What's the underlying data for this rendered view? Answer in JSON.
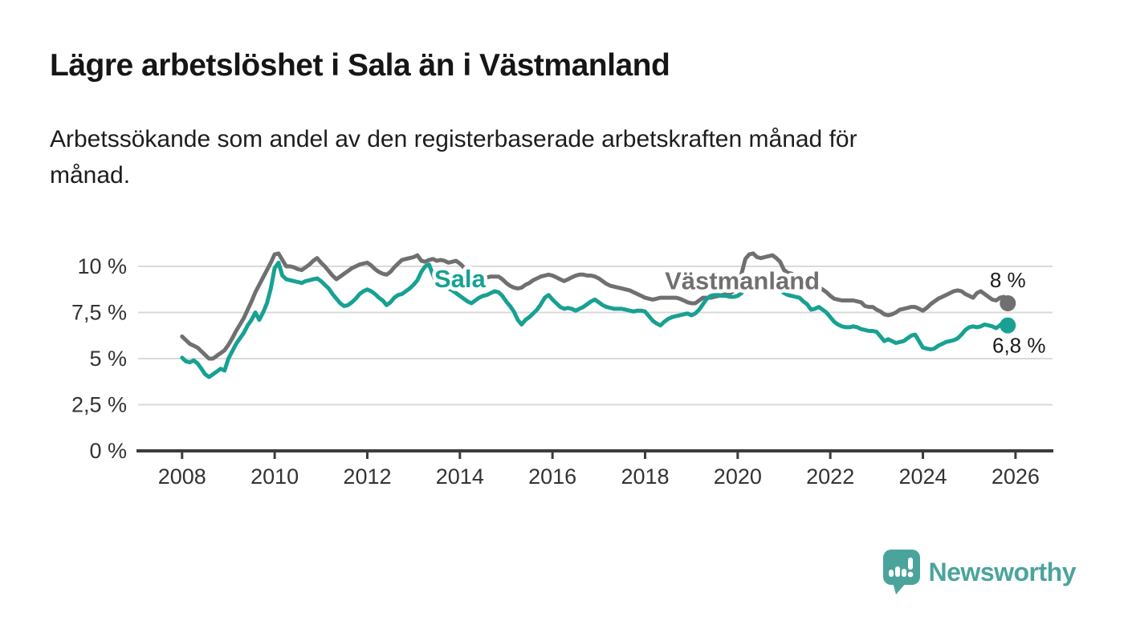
{
  "header": {
    "title": "Lägre arbetslöshet i Sala än i Västmanland",
    "subtitle_lines": [
      "Arbetssökande som andel av den registerbaserade arbetskraften månad för",
      "månad."
    ]
  },
  "footer": {
    "brand": "Newsworthy"
  },
  "colors": {
    "sala": "#18A193",
    "vastmanland": "#707070",
    "grid": "#DADADA",
    "axis": "#3C3C3C",
    "tick_text": "#333333",
    "title_text": "#161616",
    "logo": "#4BA49C"
  },
  "chart_data": {
    "type": "line",
    "title": "Lägre arbetslöshet i Sala än i Västmanland",
    "subtitle": "Arbetssökande som andel av den registerbaserade arbetskraften månad för månad.",
    "unit": "%",
    "x_ticks": [
      2008,
      2010,
      2012,
      2014,
      2016,
      2018,
      2020,
      2022,
      2024,
      2026
    ],
    "y_ticks": [
      {
        "value": 0,
        "label": "0 %"
      },
      {
        "value": 2.5,
        "label": "2,5 %"
      },
      {
        "value": 5,
        "label": "5 %"
      },
      {
        "value": 7.5,
        "label": "7,5 %"
      },
      {
        "value": 10,
        "label": "10 %"
      }
    ],
    "xlim": [
      2007.05,
      2026.8
    ],
    "ylim": [
      0,
      11.6
    ],
    "grid": true,
    "legend_position": "inline",
    "x_start": 2008.0,
    "x_step_months": 1,
    "series": [
      {
        "name": "Västmanland",
        "color": "#707070",
        "end_label": "8 %",
        "latest_value": 8.0,
        "inline_label": {
          "x": 2020.1,
          "y": 9.25
        },
        "values": [
          6.2,
          6.0,
          5.8,
          5.7,
          5.6,
          5.4,
          5.2,
          5.0,
          5.0,
          5.15,
          5.3,
          5.45,
          5.75,
          6.1,
          6.5,
          6.85,
          7.2,
          7.65,
          8.1,
          8.6,
          9.0,
          9.4,
          9.8,
          10.2,
          10.65,
          10.7,
          10.35,
          10.0,
          10.0,
          9.95,
          9.85,
          9.8,
          9.95,
          10.1,
          10.3,
          10.45,
          10.2,
          10.0,
          9.75,
          9.5,
          9.3,
          9.45,
          9.6,
          9.75,
          9.9,
          10.0,
          10.1,
          10.15,
          10.2,
          10.05,
          9.85,
          9.7,
          9.6,
          9.55,
          9.7,
          9.95,
          10.15,
          10.35,
          10.4,
          10.45,
          10.5,
          10.6,
          10.3,
          10.25,
          10.35,
          10.4,
          10.3,
          10.35,
          10.3,
          10.2,
          10.25,
          10.3,
          10.15,
          9.95,
          9.75,
          9.6,
          9.45,
          9.35,
          9.35,
          9.4,
          9.45,
          9.45,
          9.45,
          9.3,
          9.1,
          8.95,
          8.85,
          8.8,
          8.85,
          9.0,
          9.1,
          9.25,
          9.35,
          9.45,
          9.5,
          9.55,
          9.5,
          9.4,
          9.3,
          9.2,
          9.3,
          9.4,
          9.5,
          9.55,
          9.55,
          9.5,
          9.5,
          9.45,
          9.35,
          9.2,
          9.05,
          8.95,
          8.9,
          8.85,
          8.8,
          8.75,
          8.7,
          8.6,
          8.5,
          8.4,
          8.3,
          8.25,
          8.2,
          8.25,
          8.3,
          8.3,
          8.3,
          8.3,
          8.3,
          8.25,
          8.15,
          8.05,
          8.0,
          8.0,
          8.15,
          8.3,
          8.3,
          8.3,
          8.35,
          8.4,
          8.45,
          8.5,
          8.55,
          8.65,
          8.9,
          9.6,
          10.4,
          10.65,
          10.7,
          10.5,
          10.45,
          10.5,
          10.55,
          10.6,
          10.45,
          10.25,
          9.8,
          9.65,
          9.6,
          9.45,
          9.3,
          9.2,
          9.15,
          9.05,
          8.95,
          8.85,
          8.75,
          8.6,
          8.4,
          8.25,
          8.2,
          8.15,
          8.15,
          8.15,
          8.15,
          8.1,
          8.05,
          7.85,
          7.8,
          7.8,
          7.65,
          7.55,
          7.4,
          7.35,
          7.4,
          7.5,
          7.65,
          7.7,
          7.75,
          7.8,
          7.8,
          7.7,
          7.6,
          7.75,
          7.95,
          8.1,
          8.25,
          8.35,
          8.45,
          8.55,
          8.65,
          8.7,
          8.65,
          8.5,
          8.4,
          8.3,
          8.55,
          8.65,
          8.5,
          8.35,
          8.2,
          8.15,
          8.3,
          8.35,
          8.0
        ]
      },
      {
        "name": "Sala",
        "color": "#18A193",
        "end_label": "6,8 %",
        "latest_value": 6.8,
        "inline_label": {
          "x": 2014.0,
          "y": 9.35
        },
        "values": [
          5.05,
          4.85,
          4.8,
          4.9,
          4.75,
          4.45,
          4.15,
          4.0,
          4.15,
          4.3,
          4.45,
          4.35,
          5.0,
          5.4,
          5.8,
          6.1,
          6.4,
          6.8,
          7.1,
          7.5,
          7.1,
          7.5,
          8.0,
          8.8,
          9.9,
          10.2,
          9.5,
          9.3,
          9.25,
          9.2,
          9.15,
          9.1,
          9.2,
          9.25,
          9.3,
          9.35,
          9.2,
          9.0,
          8.8,
          8.5,
          8.25,
          8.0,
          7.85,
          7.9,
          8.05,
          8.25,
          8.5,
          8.65,
          8.75,
          8.65,
          8.5,
          8.3,
          8.15,
          7.9,
          8.05,
          8.3,
          8.45,
          8.5,
          8.65,
          8.8,
          9.0,
          9.25,
          9.7,
          10.0,
          10.1,
          9.55,
          9.1,
          9.35,
          8.95,
          8.8,
          8.7,
          8.55,
          8.4,
          8.25,
          8.1,
          8.0,
          8.15,
          8.3,
          8.4,
          8.45,
          8.55,
          8.65,
          8.6,
          8.4,
          8.1,
          7.85,
          7.55,
          7.1,
          6.85,
          7.1,
          7.25,
          7.45,
          7.65,
          7.95,
          8.3,
          8.45,
          8.2,
          8.0,
          7.8,
          7.7,
          7.75,
          7.7,
          7.6,
          7.7,
          7.8,
          7.95,
          8.1,
          8.2,
          8.05,
          7.9,
          7.8,
          7.75,
          7.7,
          7.7,
          7.7,
          7.65,
          7.6,
          7.55,
          7.6,
          7.6,
          7.55,
          7.3,
          7.05,
          6.9,
          6.8,
          7.0,
          7.15,
          7.25,
          7.3,
          7.35,
          7.4,
          7.45,
          7.35,
          7.45,
          7.65,
          7.95,
          8.25,
          8.4,
          8.45,
          8.45,
          8.4,
          8.4,
          8.35,
          8.35,
          8.4,
          8.55,
          8.85,
          9.1,
          9.3,
          9.4,
          9.4,
          9.4,
          9.35,
          9.2,
          9.0,
          8.75,
          8.55,
          8.45,
          8.4,
          8.35,
          8.3,
          8.1,
          7.95,
          7.65,
          7.7,
          7.8,
          7.65,
          7.5,
          7.25,
          7.0,
          6.85,
          6.75,
          6.7,
          6.7,
          6.75,
          6.7,
          6.6,
          6.55,
          6.5,
          6.5,
          6.45,
          6.2,
          5.95,
          6.05,
          5.95,
          5.85,
          5.9,
          5.95,
          6.1,
          6.25,
          6.3,
          5.95,
          5.6,
          5.55,
          5.5,
          5.55,
          5.7,
          5.8,
          5.9,
          5.95,
          6.0,
          6.1,
          6.3,
          6.55,
          6.7,
          6.75,
          6.7,
          6.75,
          6.85,
          6.8,
          6.75,
          6.65,
          6.8,
          7.0,
          6.8
        ]
      }
    ]
  }
}
